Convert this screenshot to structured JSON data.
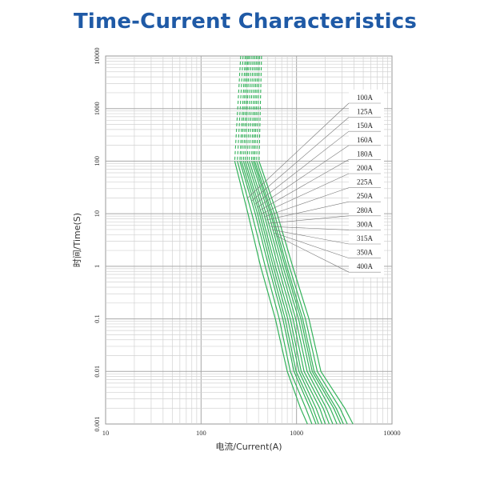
{
  "title": "Time-Current Characteristics",
  "chart_data": {
    "type": "line",
    "title": "Time-Current Characteristics",
    "xlabel": "电流/Current(A)",
    "ylabel": "时间/Time(S)",
    "xscale": "log",
    "yscale": "log",
    "xlim": [
      10,
      10000
    ],
    "ylim": [
      0.001,
      10000
    ],
    "x_ticks": [
      "10",
      "100",
      "1000",
      "10000"
    ],
    "y_ticks": [
      "0.001",
      "0.01",
      "0.1",
      "1",
      "10",
      "100",
      "1000",
      "10000"
    ],
    "grid": true,
    "legend_position": "right",
    "line_color": "#33b25a",
    "note": "Upper portion of each curve (above ~100 s) drawn dashed",
    "series": [
      {
        "name": "100A",
        "x": [
          210,
          195,
          120
        ],
        "y": [
          100,
          10000,
          10000
        ]
      },
      {
        "name": "100A",
        "points": [
          [
            260,
            10000
          ],
          [
            225,
            100
          ],
          [
            310,
            10
          ],
          [
            420,
            1
          ],
          [
            600,
            0.1
          ],
          [
            800,
            0.01
          ],
          [
            1100,
            0.002
          ],
          [
            1300,
            0.001
          ]
        ]
      },
      {
        "name": "125A",
        "points": [
          [
            275,
            10000
          ],
          [
            240,
            100
          ],
          [
            340,
            10
          ],
          [
            470,
            1
          ],
          [
            660,
            0.1
          ],
          [
            860,
            0.01
          ],
          [
            1250,
            0.002
          ],
          [
            1450,
            0.001
          ]
        ]
      },
      {
        "name": "150A",
        "points": [
          [
            290,
            10000
          ],
          [
            255,
            100
          ],
          [
            370,
            10
          ],
          [
            510,
            1
          ],
          [
            720,
            0.1
          ],
          [
            940,
            0.01
          ],
          [
            1380,
            0.002
          ],
          [
            1600,
            0.001
          ]
        ]
      },
      {
        "name": "160A",
        "points": [
          [
            300,
            10000
          ],
          [
            265,
            100
          ],
          [
            390,
            10
          ],
          [
            540,
            1
          ],
          [
            760,
            0.1
          ],
          [
            990,
            0.01
          ],
          [
            1480,
            0.002
          ],
          [
            1700,
            0.001
          ]
        ]
      },
      {
        "name": "180A",
        "points": [
          [
            310,
            10000
          ],
          [
            278,
            100
          ],
          [
            410,
            10
          ],
          [
            570,
            1
          ],
          [
            810,
            0.1
          ],
          [
            1060,
            0.01
          ],
          [
            1600,
            0.002
          ],
          [
            1850,
            0.001
          ]
        ]
      },
      {
        "name": "200A",
        "points": [
          [
            320,
            10000
          ],
          [
            290,
            100
          ],
          [
            430,
            10
          ],
          [
            600,
            1
          ],
          [
            860,
            0.1
          ],
          [
            1120,
            0.01
          ],
          [
            1750,
            0.002
          ],
          [
            2000,
            0.001
          ]
        ]
      },
      {
        "name": "225A",
        "points": [
          [
            335,
            10000
          ],
          [
            305,
            100
          ],
          [
            455,
            10
          ],
          [
            640,
            1
          ],
          [
            920,
            0.1
          ],
          [
            1200,
            0.01
          ],
          [
            1900,
            0.002
          ],
          [
            2200,
            0.001
          ]
        ]
      },
      {
        "name": "250A",
        "points": [
          [
            350,
            10000
          ],
          [
            320,
            100
          ],
          [
            480,
            10
          ],
          [
            680,
            1
          ],
          [
            980,
            0.1
          ],
          [
            1290,
            0.01
          ],
          [
            2050,
            0.002
          ],
          [
            2400,
            0.001
          ]
        ]
      },
      {
        "name": "280A",
        "points": [
          [
            365,
            10000
          ],
          [
            338,
            100
          ],
          [
            510,
            10
          ],
          [
            720,
            1
          ],
          [
            1050,
            0.1
          ],
          [
            1380,
            0.01
          ],
          [
            2250,
            0.002
          ],
          [
            2650,
            0.001
          ]
        ]
      },
      {
        "name": "300A",
        "points": [
          [
            380,
            10000
          ],
          [
            352,
            100
          ],
          [
            535,
            10
          ],
          [
            760,
            1
          ],
          [
            1110,
            0.1
          ],
          [
            1460,
            0.01
          ],
          [
            2450,
            0.002
          ],
          [
            2900,
            0.001
          ]
        ]
      },
      {
        "name": "315A",
        "points": [
          [
            395,
            10000
          ],
          [
            365,
            100
          ],
          [
            555,
            10
          ],
          [
            790,
            1
          ],
          [
            1160,
            0.1
          ],
          [
            1530,
            0.01
          ],
          [
            2600,
            0.002
          ],
          [
            3100,
            0.001
          ]
        ]
      },
      {
        "name": "350A",
        "points": [
          [
            410,
            10000
          ],
          [
            382,
            100
          ],
          [
            585,
            10
          ],
          [
            840,
            1
          ],
          [
            1240,
            0.1
          ],
          [
            1650,
            0.01
          ],
          [
            2850,
            0.002
          ],
          [
            3400,
            0.001
          ]
        ]
      },
      {
        "name": "400A",
        "points": [
          [
            430,
            10000
          ],
          [
            405,
            100
          ],
          [
            625,
            10
          ],
          [
            910,
            1
          ],
          [
            1350,
            0.1
          ],
          [
            1800,
            0.01
          ],
          [
            3200,
            0.002
          ],
          [
            3900,
            0.001
          ]
        ]
      }
    ],
    "legend_entries": [
      "100A",
      "125A",
      "150A",
      "160A",
      "180A",
      "200A",
      "225A",
      "250A",
      "280A",
      "300A",
      "315A",
      "350A",
      "400A"
    ]
  }
}
